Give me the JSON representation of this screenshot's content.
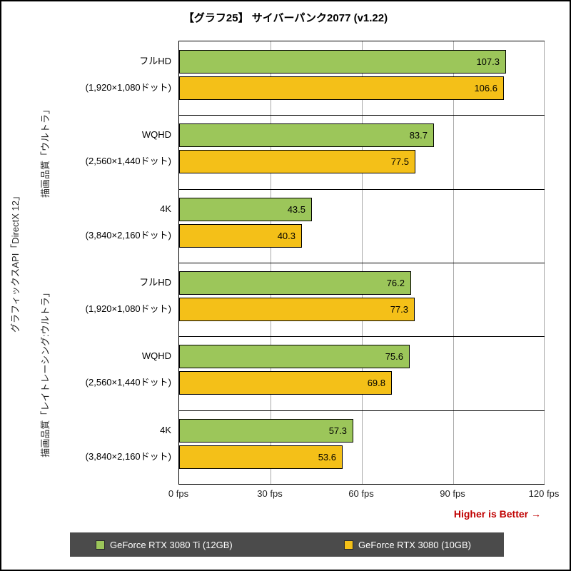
{
  "title": "【グラフ25】 サイバーパンク2077 (v1.22)",
  "chart_data": {
    "type": "bar",
    "orientation": "horizontal",
    "title": "【グラフ25】 サイバーパンク2077 (v1.22)",
    "unit": "fps",
    "xlim": [
      0,
      120
    ],
    "grid": "vertical-gridlines-on",
    "legend_position": "bottom",
    "legend_background": "#4b4b4b",
    "axis_label": "グラフィックスAPI「DirectX 12」",
    "note": "Higher is Better →",
    "note_color": "#c00000",
    "ticks": [
      {
        "label": "0 fps",
        "value": 0
      },
      {
        "label": "30 fps",
        "value": 30
      },
      {
        "label": "60 fps",
        "value": 60
      },
      {
        "label": "90 fps",
        "value": 90
      },
      {
        "label": "120 fps",
        "value": 120
      }
    ],
    "series": [
      {
        "name": "GeForce RTX 3080 Ti (12GB)",
        "color": "#9cc65a"
      },
      {
        "name": "GeForce RTX 3080 (10GB)",
        "color": "#f4c018"
      }
    ],
    "groups": [
      {
        "label": "描画品質「ウルトラ」",
        "categories": [
          {
            "name": "フルHD",
            "resolution": "(1,920×1,080ドット)",
            "values": [
              107.3,
              106.6
            ]
          },
          {
            "name": "WQHD",
            "resolution": "(2,560×1,440ドット)",
            "values": [
              83.7,
              77.5
            ]
          },
          {
            "name": "4K",
            "resolution": "(3,840×2,160ドット)",
            "values": [
              43.5,
              40.3
            ]
          }
        ]
      },
      {
        "label": "描画品質「レイトレーシング:ウルトラ」",
        "categories": [
          {
            "name": "フルHD",
            "resolution": "(1,920×1,080ドット)",
            "values": [
              76.2,
              77.3
            ]
          },
          {
            "name": "WQHD",
            "resolution": "(2,560×1,440ドット)",
            "values": [
              75.6,
              69.8
            ]
          },
          {
            "name": "4K",
            "resolution": "(3,840×2,160ドット)",
            "values": [
              57.3,
              53.6
            ]
          }
        ]
      }
    ]
  }
}
